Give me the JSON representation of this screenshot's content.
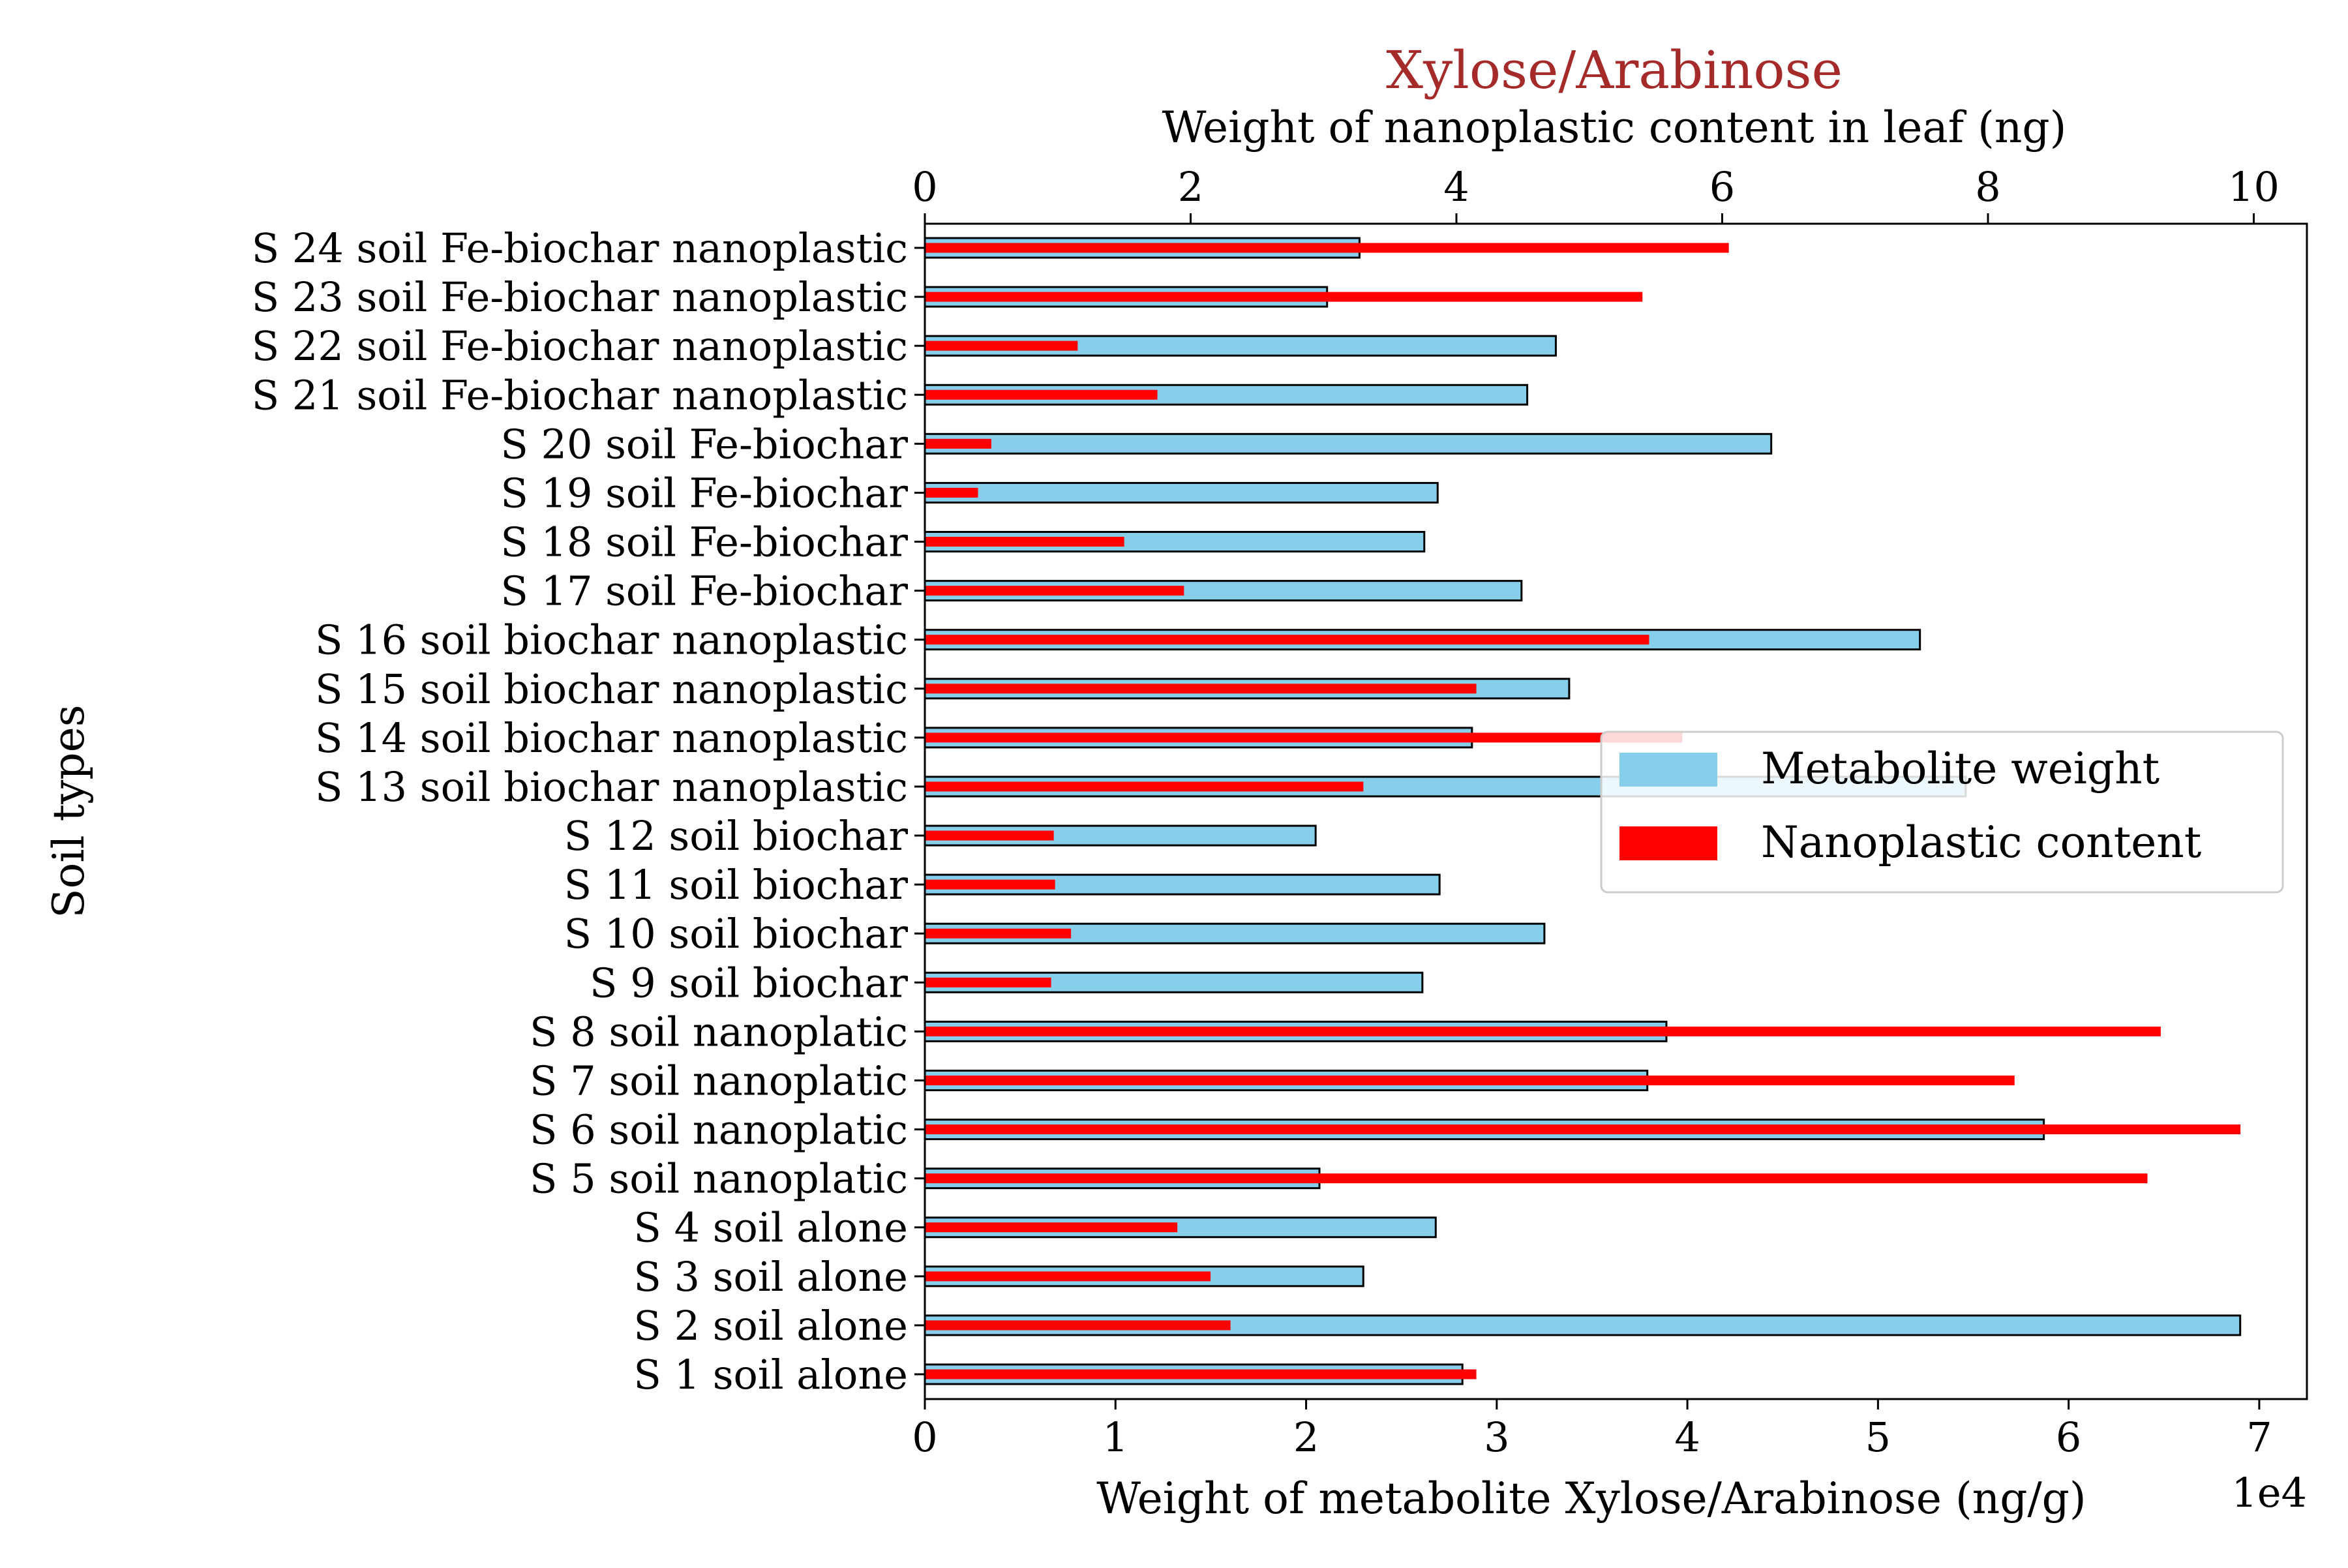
{
  "chart_data": {
    "type": "bar",
    "orientation": "horizontal",
    "title": "Xylose/Arabinose",
    "title_color": "#a52a2a",
    "xlabel_bottom": "Weight of metabolite Xylose/Arabinose (ng/g)",
    "xlabel_top": "Weight of nanoplastic content in leaf (ng)",
    "ylabel": "Soil types",
    "bottom_axis_offset_text": "1e4",
    "xlim_bottom": [
      0,
      72500
    ],
    "xlim_top": [
      0,
      10.4
    ],
    "bottom_ticks": [
      0,
      10000,
      20000,
      30000,
      40000,
      50000,
      60000,
      70000
    ],
    "bottom_tick_labels": [
      "0",
      "1",
      "2",
      "3",
      "4",
      "5",
      "6",
      "7"
    ],
    "top_ticks": [
      0,
      2,
      4,
      6,
      8,
      10
    ],
    "top_tick_labels": [
      "0",
      "2",
      "4",
      "6",
      "8",
      "10"
    ],
    "categories": [
      "S 1 soil alone",
      "S 2 soil alone",
      "S 3 soil alone",
      "S 4 soil alone",
      "S 5 soil nanoplatic",
      "S 6 soil nanoplatic",
      "S 7 soil nanoplatic",
      "S 8 soil nanoplatic",
      "S 9 soil biochar",
      "S 10 soil biochar",
      "S 11 soil biochar",
      "S 12 soil biochar",
      "S 13 soil biochar nanoplastic",
      "S 14 soil biochar nanoplastic",
      "S 15 soil biochar nanoplastic",
      "S 16 soil biochar nanoplastic",
      "S 17 soil Fe-biochar",
      "S 18 soil Fe-biochar",
      "S 19 soil Fe-biochar",
      "S 20 soil Fe-biochar",
      "S 21 soil Fe-biochar nanoplastic",
      "S 22 soil Fe-biochar nanoplastic",
      "S 23 soil Fe-biochar nanoplastic",
      "S 24 soil Fe-biochar nanoplastic"
    ],
    "series": [
      {
        "name": "Metabolite weight",
        "axis": "bottom",
        "color": "#87ceeb",
        "values": [
          28200,
          69000,
          23000,
          26800,
          20700,
          58700,
          37900,
          38900,
          26100,
          32500,
          27000,
          20500,
          54600,
          28700,
          33800,
          52200,
          31300,
          26200,
          26900,
          44400,
          31600,
          33100,
          21100,
          22800
        ]
      },
      {
        "name": "Nanoplastic content",
        "axis": "top",
        "color": "#ff0000",
        "values": [
          4.15,
          2.3,
          2.15,
          1.9,
          9.2,
          9.9,
          8.2,
          9.3,
          0.95,
          1.1,
          0.98,
          0.97,
          3.3,
          5.7,
          4.15,
          5.45,
          1.95,
          1.5,
          0.4,
          0.5,
          1.75,
          1.15,
          5.4,
          6.05
        ]
      }
    ],
    "legend": {
      "position": "center-right",
      "entries": [
        "Metabolite weight",
        "Nanoplastic content"
      ]
    },
    "grid": false
  }
}
